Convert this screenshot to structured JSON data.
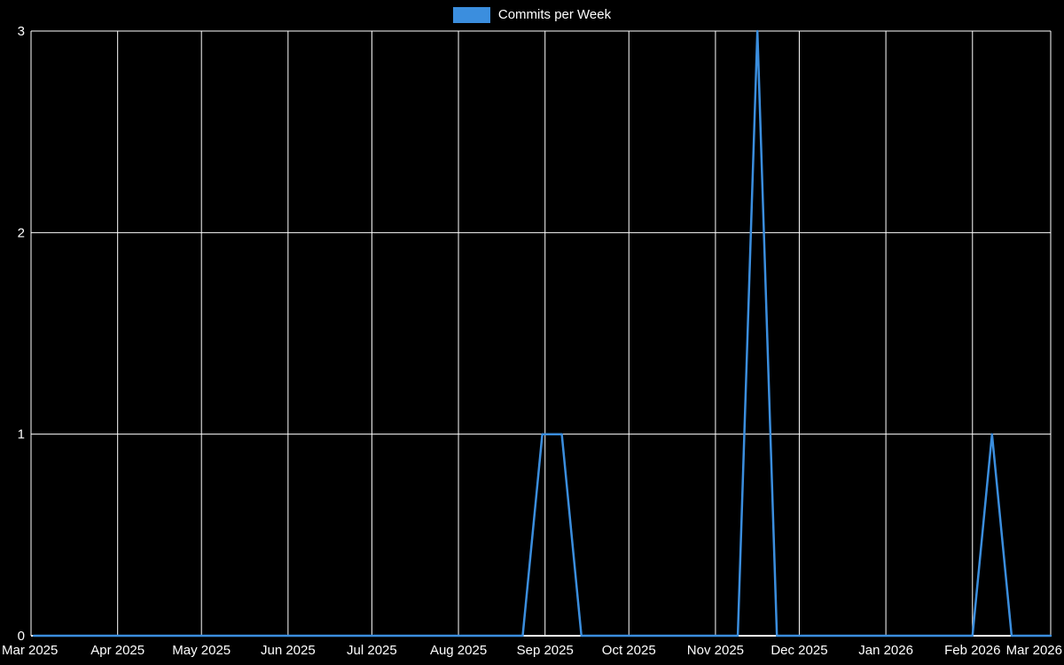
{
  "chart_data": {
    "type": "line",
    "title": "",
    "legend_label": "Commits per Week",
    "legend_position": "top-center",
    "background_color": "#000000",
    "grid": true,
    "grid_color": "#ffffff",
    "axis_text_color": "#ffffff",
    "ylim": [
      0,
      3
    ],
    "y_ticks": [
      0,
      1,
      2,
      3
    ],
    "x_range": [
      "2025-03-01",
      "2026-03-01"
    ],
    "x_ticks": [
      {
        "date": "2025-03-01",
        "label": "Mar 2025"
      },
      {
        "date": "2025-04-01",
        "label": "Apr 2025"
      },
      {
        "date": "2025-05-01",
        "label": "May 2025"
      },
      {
        "date": "2025-06-01",
        "label": "Jun 2025"
      },
      {
        "date": "2025-07-01",
        "label": "Jul 2025"
      },
      {
        "date": "2025-08-01",
        "label": "Aug 2025"
      },
      {
        "date": "2025-09-01",
        "label": "Sep 2025"
      },
      {
        "date": "2025-10-01",
        "label": "Oct 2025"
      },
      {
        "date": "2025-11-01",
        "label": "Nov 2025"
      },
      {
        "date": "2025-12-01",
        "label": "Dec 2025"
      },
      {
        "date": "2026-01-01",
        "label": "Jan 2026"
      },
      {
        "date": "2026-02-01",
        "label": "Feb 2026"
      },
      {
        "date": "2026-03-01",
        "label": "Mar 2026"
      }
    ],
    "series": [
      {
        "name": "Commits per Week",
        "color": "#3B8EDE",
        "weeks": [
          "2025-03-02",
          "2025-03-09",
          "2025-03-16",
          "2025-03-23",
          "2025-03-30",
          "2025-04-06",
          "2025-04-13",
          "2025-04-20",
          "2025-04-27",
          "2025-05-04",
          "2025-05-11",
          "2025-05-18",
          "2025-05-25",
          "2025-06-01",
          "2025-06-08",
          "2025-06-15",
          "2025-06-22",
          "2025-06-29",
          "2025-07-06",
          "2025-07-13",
          "2025-07-20",
          "2025-07-27",
          "2025-08-03",
          "2025-08-10",
          "2025-08-17",
          "2025-08-24",
          "2025-08-31",
          "2025-09-07",
          "2025-09-14",
          "2025-09-21",
          "2025-09-28",
          "2025-10-05",
          "2025-10-12",
          "2025-10-19",
          "2025-10-26",
          "2025-11-02",
          "2025-11-09",
          "2025-11-16",
          "2025-11-23",
          "2025-11-30",
          "2025-12-07",
          "2025-12-14",
          "2025-12-21",
          "2025-12-28",
          "2026-01-04",
          "2026-01-11",
          "2026-01-18",
          "2026-01-25",
          "2026-02-01",
          "2026-02-08",
          "2026-02-15",
          "2026-02-22",
          "2026-03-01"
        ],
        "values": [
          0,
          0,
          0,
          0,
          0,
          0,
          0,
          0,
          0,
          0,
          0,
          0,
          0,
          0,
          0,
          0,
          0,
          0,
          0,
          0,
          0,
          0,
          0,
          0,
          0,
          0,
          1,
          1,
          0,
          0,
          0,
          0,
          0,
          0,
          0,
          0,
          0,
          3,
          0,
          0,
          0,
          0,
          0,
          0,
          0,
          0,
          0,
          0,
          0,
          1,
          0,
          0,
          0
        ]
      }
    ]
  }
}
